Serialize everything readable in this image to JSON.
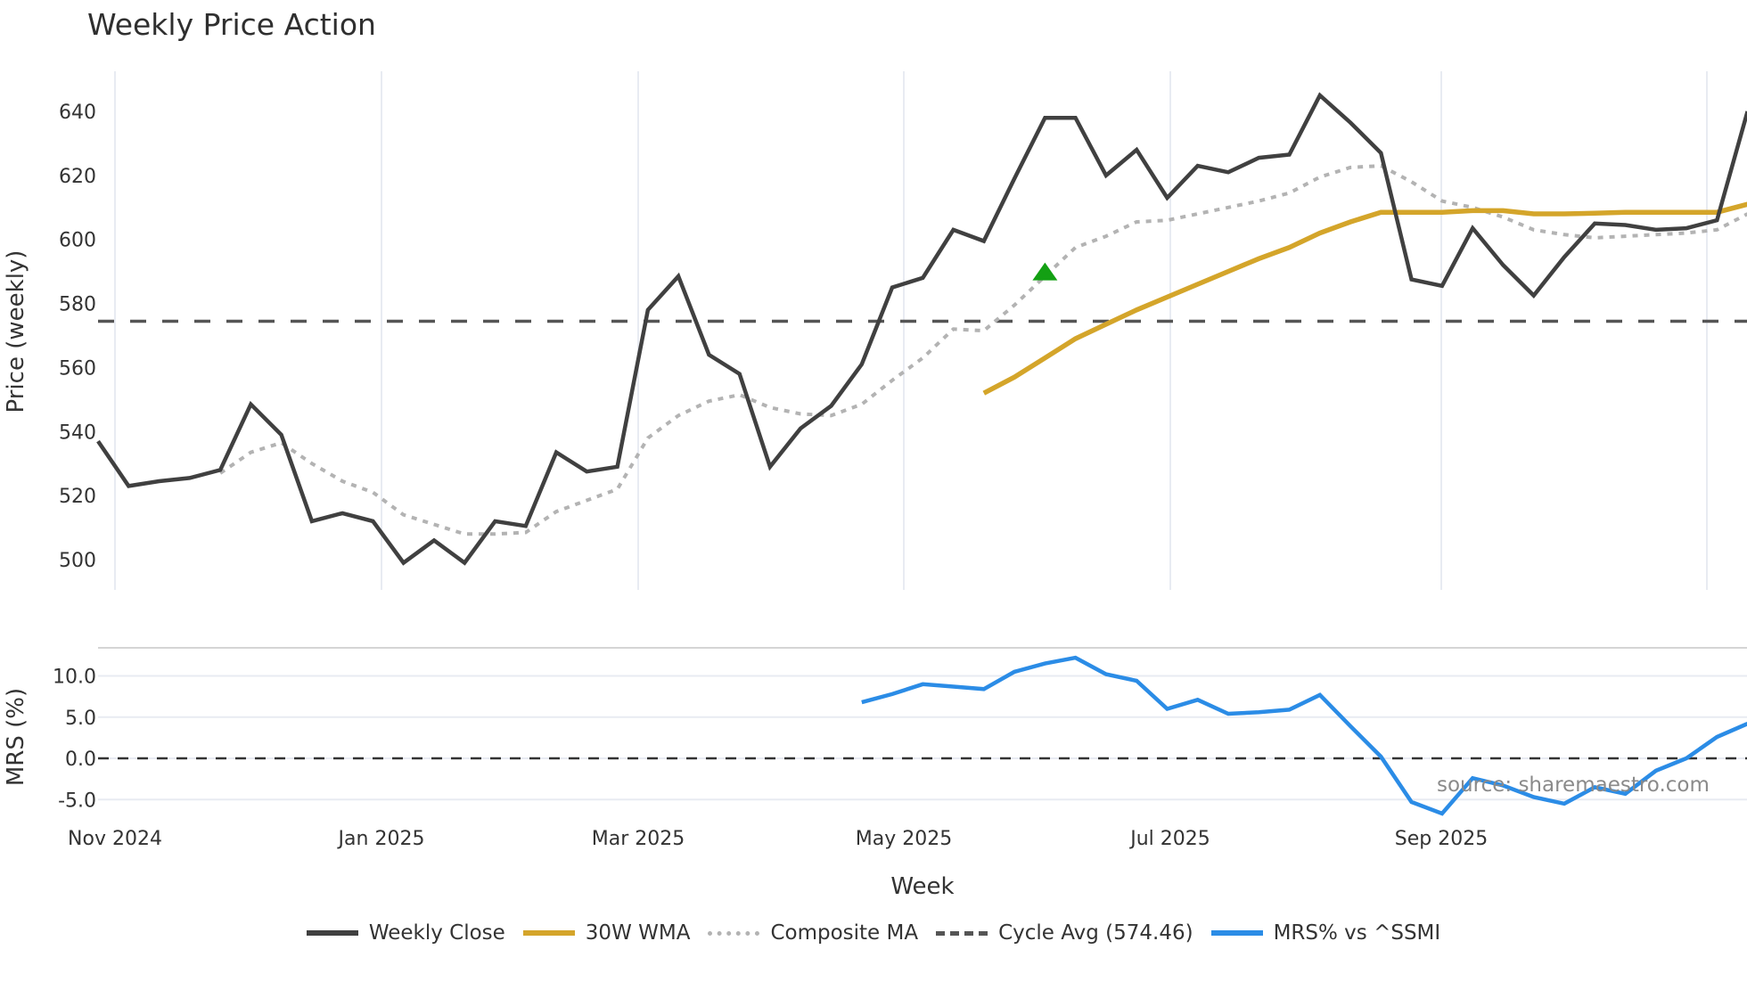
{
  "title": "Weekly Price Action",
  "source": "source: sharemaestro.com",
  "colors": {
    "weekly_close": "#404040",
    "wma30": "#d4a52a",
    "composite_ma": "#b3b3b3",
    "cycle_avg": "#555555",
    "mrs": "#2b8ce6",
    "signal": "#13a013",
    "grid": "#e8ebf2"
  },
  "legend": [
    {
      "label": "Weekly Close",
      "key": "weekly_close",
      "style": "solid"
    },
    {
      "label": "30W WMA",
      "key": "wma30",
      "style": "solid"
    },
    {
      "label": "Composite MA",
      "key": "composite_ma",
      "style": "dotted"
    },
    {
      "label": "Cycle Avg (574.46)",
      "key": "cycle_avg",
      "style": "dashed"
    },
    {
      "label": "MRS% vs ^SSMI",
      "key": "mrs",
      "style": "solid"
    }
  ],
  "chart_data": [
    {
      "type": "line",
      "title": "Weekly Price Action",
      "xlabel": "Week",
      "ylabel": "Price (weekly)",
      "ylim": [
        491,
        652
      ],
      "yticks": [
        500,
        520,
        540,
        560,
        580,
        600,
        620,
        640
      ],
      "xtick_labels": [
        "Nov 2024",
        "Jan 2025",
        "Mar 2025",
        "May 2025",
        "Jul 2025",
        "Sep 2025"
      ],
      "grid": true,
      "cycle_avg": 574.46,
      "signal_marker": {
        "type": "triangle-up",
        "week_index": 31,
        "value": 590
      },
      "series": [
        {
          "name": "Weekly Close",
          "values": [
            537,
            523,
            524.5,
            525.5,
            528,
            548.5,
            539,
            512,
            514.5,
            512,
            499,
            506,
            499,
            512,
            510.5,
            533.5,
            527.5,
            529,
            578,
            588.5,
            564,
            558,
            529,
            541,
            548,
            561,
            585,
            588,
            603,
            599.5,
            619,
            638,
            638,
            620,
            628,
            613,
            623,
            621,
            625.5,
            626.5,
            645,
            636.5,
            627,
            587.5,
            585.5,
            603.5,
            592,
            582.5,
            594.5,
            605,
            604.5,
            603,
            603.5,
            606,
            640
          ]
        },
        {
          "name": "30W WMA",
          "start_index": 29,
          "values": [
            552,
            557,
            563,
            569,
            573.5,
            578,
            582,
            586,
            590,
            594,
            597.5,
            602,
            605.5,
            608.5,
            608.5,
            608.5,
            609,
            609,
            608,
            608,
            608.2,
            608.5,
            608.5,
            608.5,
            608.5,
            611
          ]
        },
        {
          "name": "Composite MA",
          "start_index": 4,
          "values": [
            527,
            533.5,
            536.5,
            530,
            524.5,
            521,
            514,
            511,
            508,
            508,
            508.5,
            515,
            518.5,
            522,
            538,
            545,
            549.5,
            551.5,
            547.5,
            545.5,
            545,
            548.5,
            556,
            563,
            572,
            571.5,
            579.5,
            588.5,
            597.5,
            601,
            605.5,
            606,
            608,
            610,
            612,
            614.5,
            619.5,
            622.5,
            623,
            618,
            612,
            610,
            607,
            603,
            601.5,
            600.5,
            601,
            601.5,
            602,
            603,
            608
          ]
        }
      ]
    },
    {
      "type": "line",
      "ylabel": "MRS (%)",
      "ylim": [
        -7.5,
        13.5
      ],
      "yticks": [
        -5.0,
        0.0,
        5.0,
        10.0
      ],
      "zero_line": 0.0,
      "series": [
        {
          "name": "MRS% vs ^SSMI",
          "start_index": 25,
          "values": [
            6.8,
            7.8,
            9.0,
            8.7,
            8.4,
            10.5,
            11.5,
            12.2,
            10.2,
            9.4,
            6.0,
            7.1,
            5.4,
            5.6,
            5.9,
            7.7,
            3.9,
            0.2,
            -5.3,
            -6.7,
            -2.4,
            -3.3,
            -4.7,
            -5.5,
            -3.5,
            -4.3,
            -1.5,
            0.0,
            2.6,
            4.2
          ]
        }
      ]
    }
  ]
}
